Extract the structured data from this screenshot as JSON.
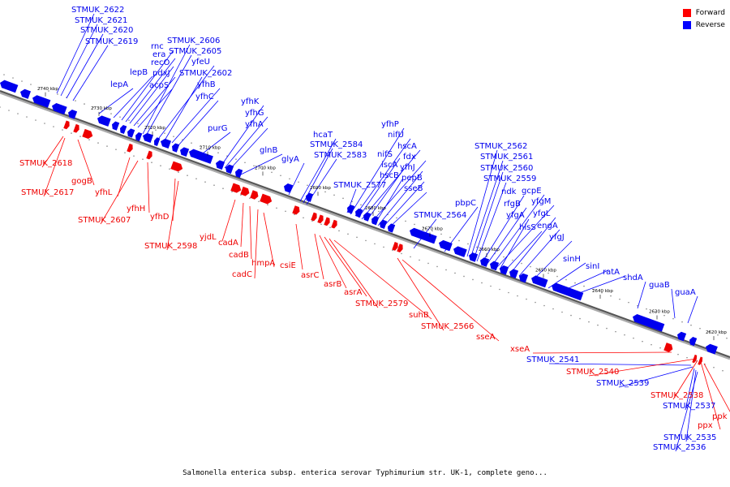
{
  "caption": "Salmonella enterica subsp. enterica serovar Typhimurium str. UK-1, complete geno...",
  "legend": [
    {
      "label": "Forward",
      "color": "#ff0000"
    },
    {
      "label": "Reverse",
      "color": "#0000ff"
    }
  ],
  "colors": {
    "forward": "#ee0000",
    "reverse": "#0000ee",
    "forward_leader": "#ff0000",
    "reverse_leader": "#0000ff",
    "backbone": "#888888"
  },
  "ticks": [
    "2740 kbp",
    "2730 kbp",
    "2720 kbp",
    "2710 kbp",
    "2700 kbp",
    "2690 kbp",
    "2680 kbp",
    "2670 kbp",
    "2660 kbp",
    "2650 kbp",
    "2640 kbp",
    "2630 kbp",
    "2620 kbp"
  ],
  "reverse_labels": [
    "STMUK_2622",
    "STMUK_2621",
    "STMUK_2620",
    "STMUK_2619",
    "lepA",
    "lepB",
    "rnc",
    "era",
    "recO",
    "pdxJ",
    "acpS",
    "STMUK_2606",
    "STMUK_2605",
    "yfeU",
    "STMUK_2602",
    "yfhB",
    "yfhC",
    "purG",
    "yfhK",
    "yfhG",
    "yfhA",
    "glnB",
    "glyA",
    "hcaT",
    "STMUK_2584",
    "STMUK_2583",
    "STMUK_2577",
    "yfhP",
    "nifU",
    "nifS",
    "hscA",
    "iscA",
    "fdx",
    "hscB",
    "yfhJ",
    "pepB",
    "sseB",
    "STMUK_2564",
    "pbpC",
    "STMUK_2562",
    "STMUK_2561",
    "STMUK_2560",
    "STMUK_2559",
    "ndk",
    "rfgB",
    "gcpE",
    "yfgM",
    "yfgA",
    "hisS",
    "yfgL",
    "engA",
    "yfgJ",
    "sinH",
    "sinI",
    "ratA",
    "shdA",
    "guaB",
    "guaA",
    "STMUK_2541",
    "STMUK_2539",
    "STMUK_2537",
    "STMUK_2535",
    "STMUK_2536"
  ],
  "forward_labels": [
    "STMUK_2618",
    "gogB",
    "STMUK_2617",
    "yfhL",
    "yfhH",
    "STMUK_2607",
    "yfhD",
    "STMUK_2598",
    "yjdL",
    "cadA",
    "cadB",
    "cadC",
    "hmpA",
    "csiE",
    "asrC",
    "asrB",
    "asrA",
    "STMUK_2579",
    "suhB",
    "STMUK_2566",
    "sseA",
    "xseA",
    "STMUK_2540",
    "STMUK_2538",
    "ppx",
    "ppk"
  ]
}
